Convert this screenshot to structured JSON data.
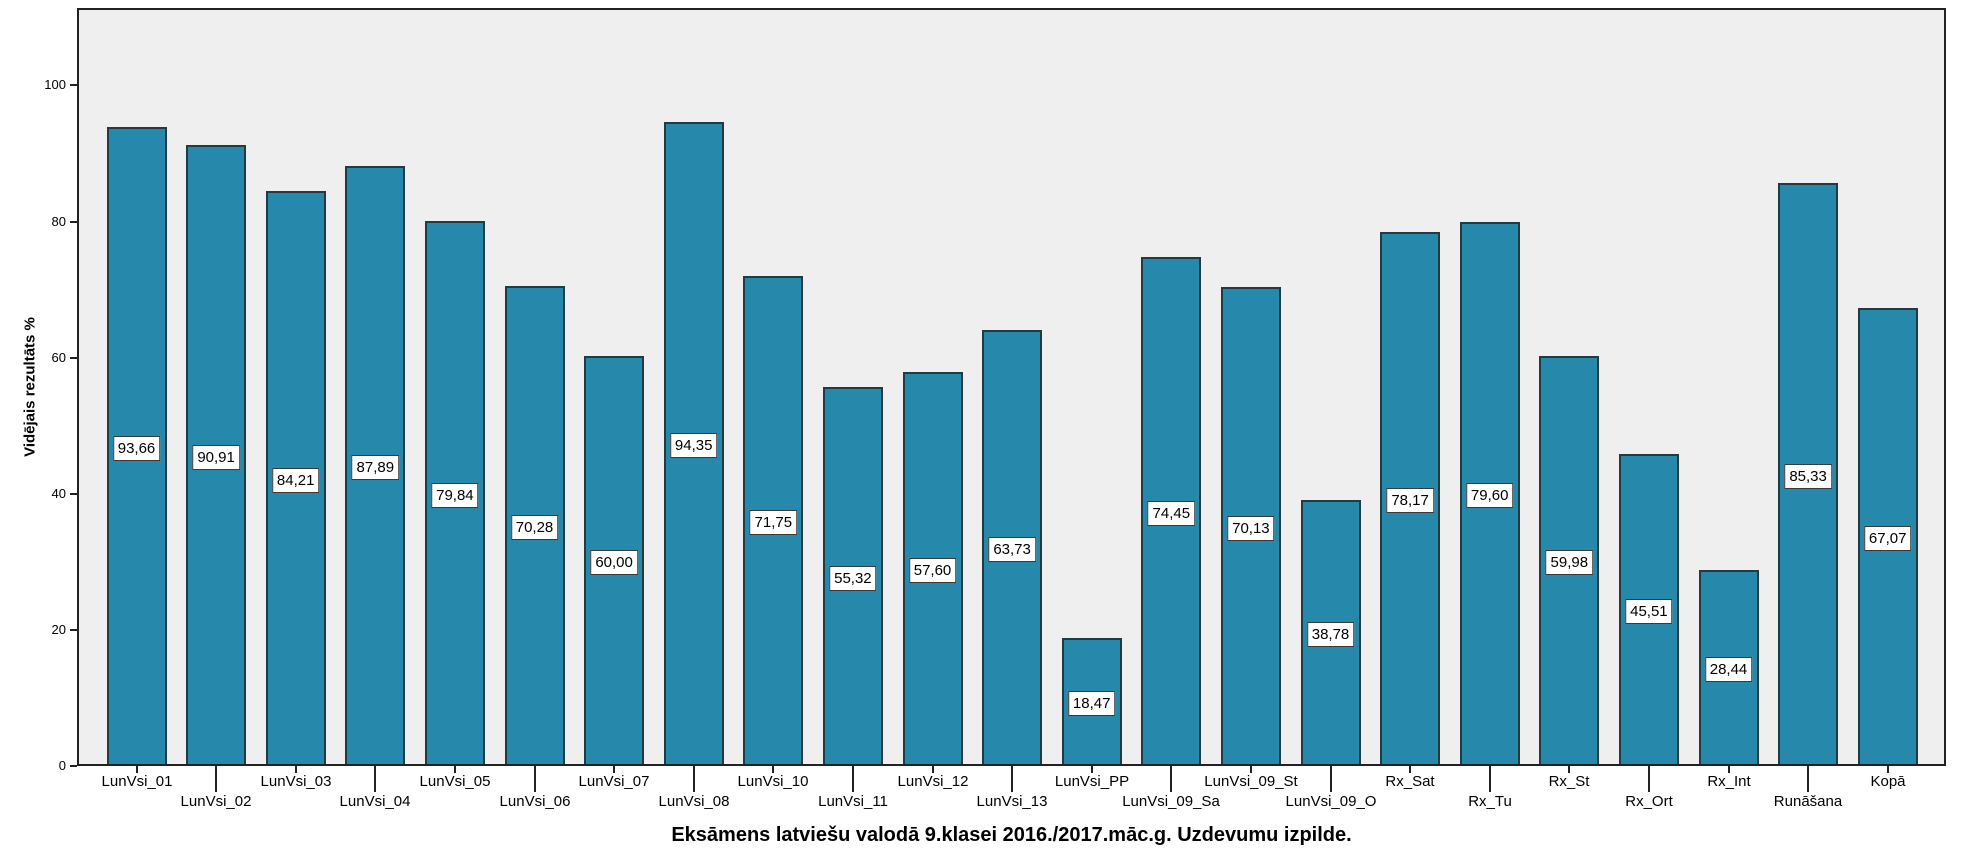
{
  "chart_data": {
    "type": "bar",
    "title": "Eksāmens latviešu valodā 9.klasei 2016./2017.māc.g. Uzdevumu izpilde.",
    "ylabel": "Vidējais rezultāts %",
    "categories": [
      "LunVsi_01",
      "LunVsi_02",
      "LunVsi_03",
      "LunVsi_04",
      "LunVsi_05",
      "LunVsi_06",
      "LunVsi_07",
      "LunVsi_08",
      "LunVsi_10",
      "LunVsi_11",
      "LunVsi_12",
      "LunVsi_13",
      "LunVsi_PP",
      "LunVsi_09_Sa",
      "LunVsi_09_St",
      "LunVsi_09_O",
      "Rx_Sat",
      "Rx_Tu",
      "Rx_St",
      "Rx_Ort",
      "Rx_Int",
      "Runāšana",
      "Kopā"
    ],
    "values": [
      93.66,
      90.91,
      84.21,
      87.89,
      79.84,
      70.28,
      60.0,
      94.35,
      71.75,
      55.32,
      57.6,
      63.73,
      18.47,
      74.45,
      70.13,
      38.78,
      78.17,
      79.6,
      59.98,
      45.51,
      28.44,
      85.33,
      67.07
    ],
    "value_labels": [
      "93,66",
      "90,91",
      "84,21",
      "87,89",
      "79,84",
      "70,28",
      "60,00",
      "94,35",
      "71,75",
      "55,32",
      "57,60",
      "63,73",
      "18,47",
      "74,45",
      "70,13",
      "38,78",
      "78,17",
      "79,60",
      "59,98",
      "45,51",
      "28,44",
      "85,33",
      "67,07"
    ],
    "ytick_labels": [
      "0",
      "20",
      "40",
      "60",
      "80",
      "100"
    ],
    "ytick_values": [
      0,
      20,
      40,
      60,
      80,
      100
    ],
    "ylim": [
      0,
      111
    ],
    "grid": false,
    "legend": "none",
    "colors": {
      "bar_fill": "#2689ac",
      "bar_border": "#223b43",
      "plot_background": "#efefef",
      "frame_border": "#222222",
      "value_box_background": "#ffffff",
      "value_box_border": "#3a3a3a",
      "text": "#000000"
    }
  }
}
